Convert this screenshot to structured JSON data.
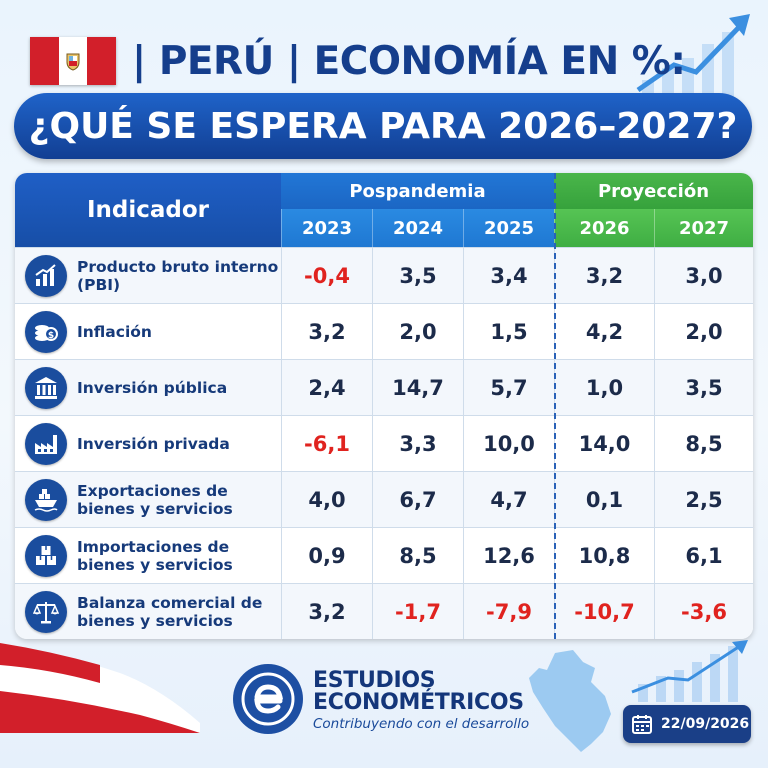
{
  "header": {
    "title_line1": "| PERÚ | ECONOMÍA EN %:",
    "title_line2": "¿QUÉ SE ESPERA PARA 2026–2027?"
  },
  "table": {
    "indicator_header": "Indicador",
    "groups": [
      {
        "label": "Pospandemia",
        "color": "#1f78d2"
      },
      {
        "label": "Proyección",
        "color": "#3fae43"
      }
    ],
    "years": [
      "2023",
      "2024",
      "2025",
      "2026",
      "2027"
    ],
    "rows": [
      {
        "label": "Producto bruto interno (PBI)",
        "icon": "growth-chart-icon",
        "values": [
          "-0,4",
          "3,5",
          "3,4",
          "3,2",
          "3,0"
        ]
      },
      {
        "label": "Inflación",
        "icon": "coins-icon",
        "values": [
          "3,2",
          "2,0",
          "1,5",
          "4,2",
          "2,0"
        ]
      },
      {
        "label": "Inversión pública",
        "icon": "government-building-icon",
        "values": [
          "2,4",
          "14,7",
          "5,7",
          "1,0",
          "3,5"
        ]
      },
      {
        "label": "Inversión privada",
        "icon": "factory-icon",
        "values": [
          "-6,1",
          "3,3",
          "10,0",
          "14,0",
          "8,5"
        ]
      },
      {
        "label": "Exportaciones de bienes y servicios",
        "icon": "cargo-ship-icon",
        "values": [
          "4,0",
          "6,7",
          "4,7",
          "0,1",
          "2,5"
        ]
      },
      {
        "label": "Importaciones de bienes y servicios",
        "icon": "boxes-icon",
        "values": [
          "0,9",
          "8,5",
          "12,6",
          "10,8",
          "6,1"
        ]
      },
      {
        "label": "Balanza comercial de bienes y servicios",
        "icon": "balance-scale-icon",
        "values": [
          "3,2",
          "-1,7",
          "-7,9",
          "-10,7",
          "-3,6"
        ]
      }
    ],
    "negative_color": "#e0231f"
  },
  "footer": {
    "brand_line1": "ESTUDIOS",
    "brand_line2": "ECONOMÉTRICOS",
    "slogan": "Contribuyendo con el desarrollo",
    "date": "22/09/2026"
  }
}
